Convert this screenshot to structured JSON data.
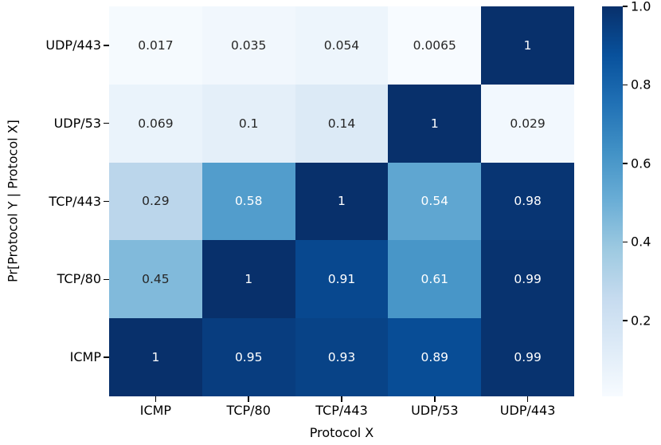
{
  "chart_data": {
    "type": "heatmap",
    "xlabel": "Protocol X",
    "ylabel": "Pr[Protocol Y | Protocol X]",
    "x_categories": [
      "ICMP",
      "TCP/80",
      "TCP/443",
      "UDP/53",
      "UDP/443"
    ],
    "y_categories": [
      "UDP/443",
      "UDP/53",
      "TCP/443",
      "TCP/80",
      "ICMP"
    ],
    "values": [
      [
        0.017,
        0.035,
        0.054,
        0.0065,
        1
      ],
      [
        0.069,
        0.1,
        0.14,
        1,
        0.029
      ],
      [
        0.29,
        0.58,
        1,
        0.54,
        0.98
      ],
      [
        0.45,
        1,
        0.91,
        0.61,
        0.99
      ],
      [
        1,
        0.95,
        0.93,
        0.89,
        0.99
      ]
    ],
    "labels": [
      [
        "0.017",
        "0.035",
        "0.054",
        "0.0065",
        "1"
      ],
      [
        "0.069",
        "0.1",
        "0.14",
        "1",
        "0.029"
      ],
      [
        "0.29",
        "0.58",
        "1",
        "0.54",
        "0.98"
      ],
      [
        "0.45",
        "1",
        "0.91",
        "0.61",
        "0.99"
      ],
      [
        "1",
        "0.95",
        "0.93",
        "0.89",
        "0.99"
      ]
    ],
    "vmin": 0.0065,
    "vmax": 1.0,
    "colormap": {
      "name": "Blues",
      "stops": [
        "#f7fbff",
        "#deebf7",
        "#c6dbef",
        "#9ecae1",
        "#6baed6",
        "#4292c6",
        "#2171b5",
        "#08519c",
        "#08306b"
      ]
    },
    "annotation_colors": {
      "light": "#ffffff",
      "dark": "#262626"
    },
    "colorbar": {
      "tick_labels": [
        "1.0",
        "0.8",
        "0.6",
        "0.4",
        "0.2"
      ],
      "tick_values": [
        1.0,
        0.8,
        0.6,
        0.4,
        0.2
      ]
    },
    "legend_position": "right",
    "grid": false
  }
}
